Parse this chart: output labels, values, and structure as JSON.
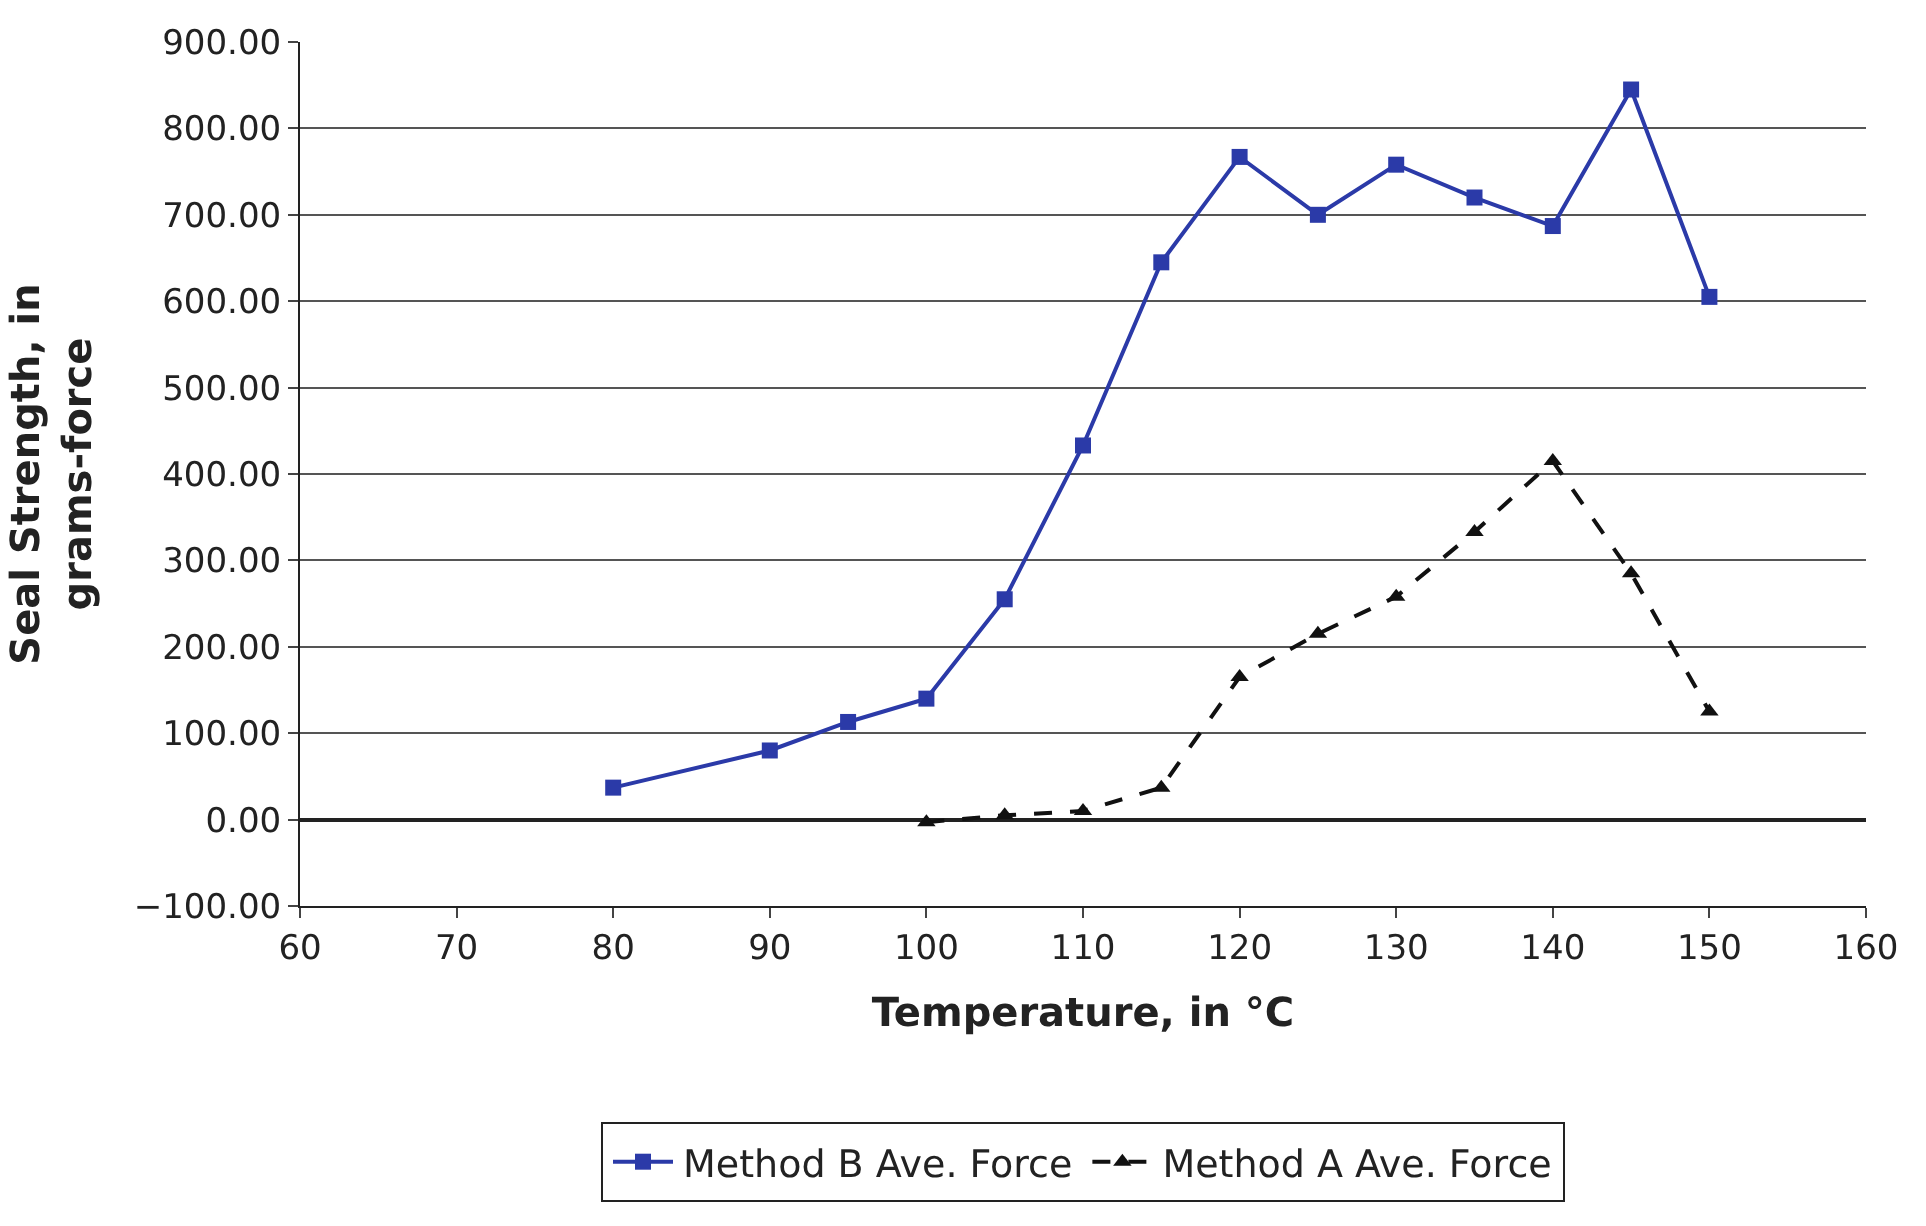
{
  "chart_data": {
    "type": "line",
    "xlabel": "Temperature, in °C",
    "ylabel": "Seal Strength, in\ngrams-force",
    "xlim": [
      60,
      160
    ],
    "xticks": [
      60,
      70,
      80,
      90,
      100,
      110,
      120,
      130,
      140,
      150,
      160
    ],
    "ylim": [
      -100,
      900
    ],
    "yticks": [
      {
        "value": -100,
        "label": "−100.00"
      },
      {
        "value": 0,
        "label": "0.00"
      },
      {
        "value": 100,
        "label": "100.00"
      },
      {
        "value": 200,
        "label": "200.00"
      },
      {
        "value": 300,
        "label": "300.00"
      },
      {
        "value": 400,
        "label": "400.00"
      },
      {
        "value": 500,
        "label": "500.00"
      },
      {
        "value": 600,
        "label": "600.00"
      },
      {
        "value": 700,
        "label": "700.00"
      },
      {
        "value": 800,
        "label": "800.00"
      },
      {
        "value": 900,
        "label": "900.00"
      }
    ],
    "grid": "y",
    "legend": "bottom",
    "series": [
      {
        "name": "Method B Ave. Force",
        "color": "#2b3aa8",
        "marker": "square",
        "line_style": "solid",
        "x": [
          80,
          90,
          95,
          100,
          105,
          110,
          115,
          120,
          125,
          130,
          135,
          140,
          145,
          150
        ],
        "values": [
          37,
          80,
          113,
          140,
          255,
          433,
          645,
          767,
          700,
          758,
          720,
          687,
          845,
          605
        ]
      },
      {
        "name": "Method A Ave. Force",
        "color": "#111111",
        "marker": "triangle",
        "line_style": "dashed",
        "x": [
          100,
          105,
          110,
          115,
          120,
          125,
          130,
          135,
          140,
          145,
          150
        ],
        "values": [
          -3,
          5,
          10,
          37,
          165,
          215,
          258,
          333,
          415,
          285,
          125
        ]
      }
    ]
  }
}
